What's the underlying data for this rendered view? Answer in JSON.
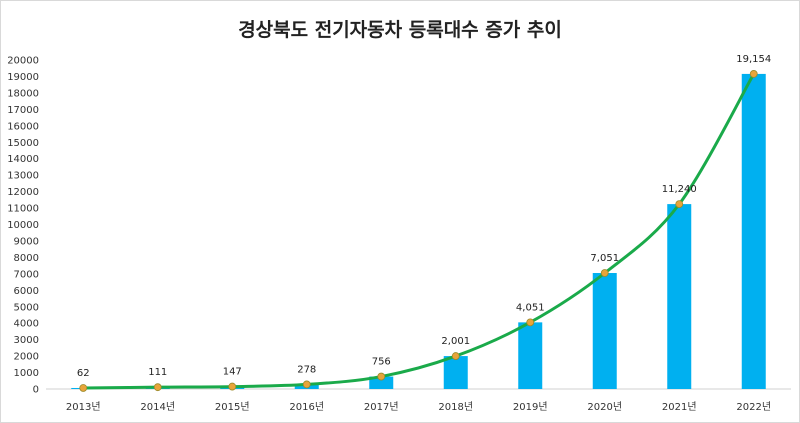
{
  "chart_data": {
    "type": "bar",
    "title": "경상북도 전기자동차 등록대수 증가 추이",
    "categories": [
      "2013년",
      "2014년",
      "2015년",
      "2016년",
      "2017년",
      "2018년",
      "2019년",
      "2020년",
      "2021년",
      "2022년"
    ],
    "values": [
      62,
      111,
      147,
      278,
      756,
      2001,
      4051,
      7051,
      11240,
      19154
    ],
    "data_labels": [
      "62",
      "111",
      "147",
      "278",
      "756",
      "2,001",
      "4,051",
      "7,051",
      "11,240",
      "19,154"
    ],
    "ylim": [
      0,
      20000
    ],
    "ytick_step": 1000,
    "xlabel": "",
    "ylabel": "",
    "grid": false,
    "legend": "none",
    "overlay": "trend-line",
    "colors": {
      "bar": "#00b0f0",
      "line": "#1aaa4a",
      "marker": "#e8a43a"
    }
  }
}
